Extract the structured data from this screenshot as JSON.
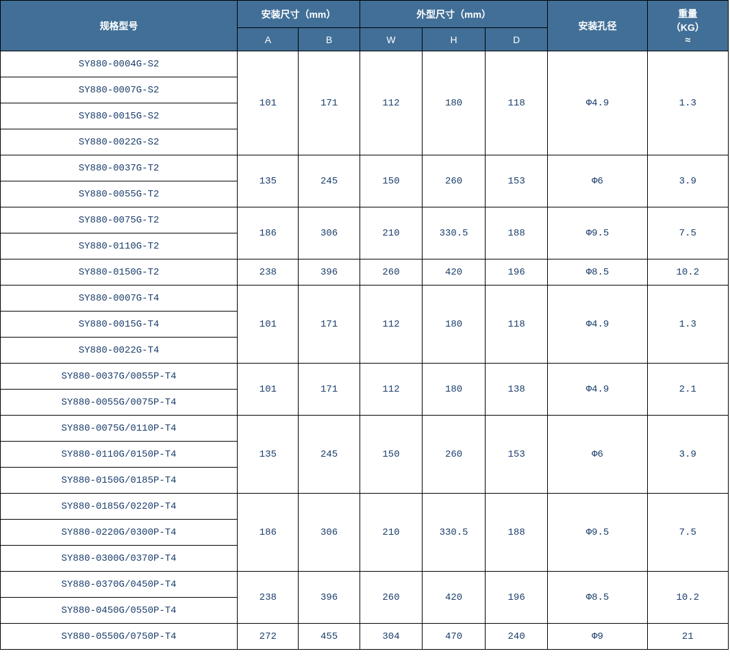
{
  "header": {
    "model": "规格型号",
    "install_dim": "安装尺寸（mm）",
    "outline_dim": "外型尺寸（mm）",
    "hole_dia": "安装孔径",
    "weight": "重量\n（KG）\n≈",
    "sub": {
      "A": "A",
      "B": "B",
      "W": "W",
      "H": "H",
      "D": "D"
    }
  },
  "colors": {
    "header_bg": "#416f97",
    "header_fg": "#ffffff",
    "border": "#000000",
    "cell_fg": "#1a3d6b",
    "cell_bg": "#ffffff"
  },
  "fonts": {
    "header_size_pt": 11,
    "cell_size_pt": 10
  },
  "groups": [
    {
      "models": [
        "SY880-0004G-S2",
        "SY880-0007G-S2",
        "SY880-0015G-S2",
        "SY880-0022G-S2"
      ],
      "A": "101",
      "B": "171",
      "W": "112",
      "H": "180",
      "D": "118",
      "hole": "Φ4.9",
      "wt": "1.3"
    },
    {
      "models": [
        "SY880-0037G-T2",
        "SY880-0055G-T2"
      ],
      "A": "135",
      "B": "245",
      "W": "150",
      "H": "260",
      "D": "153",
      "hole": "Φ6",
      "wt": "3.9"
    },
    {
      "models": [
        "SY880-0075G-T2",
        "SY880-0110G-T2"
      ],
      "A": "186",
      "B": "306",
      "W": "210",
      "H": "330.5",
      "D": "188",
      "hole": "Φ9.5",
      "wt": "7.5"
    },
    {
      "models": [
        "SY880-0150G-T2"
      ],
      "A": "238",
      "B": "396",
      "W": "260",
      "H": "420",
      "D": "196",
      "hole": "Φ8.5",
      "wt": "10.2"
    },
    {
      "models": [
        "SY880-0007G-T4",
        "SY880-0015G-T4",
        "SY880-0022G-T4"
      ],
      "A": "101",
      "B": "171",
      "W": "112",
      "H": "180",
      "D": "118",
      "hole": "Φ4.9",
      "wt": "1.3"
    },
    {
      "models": [
        "SY880-0037G/0055P-T4",
        "SY880-0055G/0075P-T4"
      ],
      "A": "101",
      "B": "171",
      "W": "112",
      "H": "180",
      "D": "138",
      "hole": "Φ4.9",
      "wt": "2.1"
    },
    {
      "models": [
        "SY880-0075G/0110P-T4",
        "SY880-0110G/0150P-T4",
        "SY880-0150G/0185P-T4"
      ],
      "A": "135",
      "B": "245",
      "W": "150",
      "H": "260",
      "D": "153",
      "hole": "Φ6",
      "wt": "3.9"
    },
    {
      "models": [
        "SY880-0185G/0220P-T4",
        "SY880-0220G/0300P-T4",
        "SY880-0300G/0370P-T4"
      ],
      "A": "186",
      "B": "306",
      "W": "210",
      "H": "330.5",
      "D": "188",
      "hole": "Φ9.5",
      "wt": "7.5"
    },
    {
      "models": [
        "SY880-0370G/0450P-T4",
        "SY880-0450G/0550P-T4"
      ],
      "A": "238",
      "B": "396",
      "W": "260",
      "H": "420",
      "D": "196",
      "hole": "Φ8.5",
      "wt": "10.2"
    },
    {
      "models": [
        "SY880-0550G/0750P-T4"
      ],
      "A": "272",
      "B": "455",
      "W": "304",
      "H": "470",
      "D": "240",
      "hole": "Φ9",
      "wt": "21"
    }
  ]
}
